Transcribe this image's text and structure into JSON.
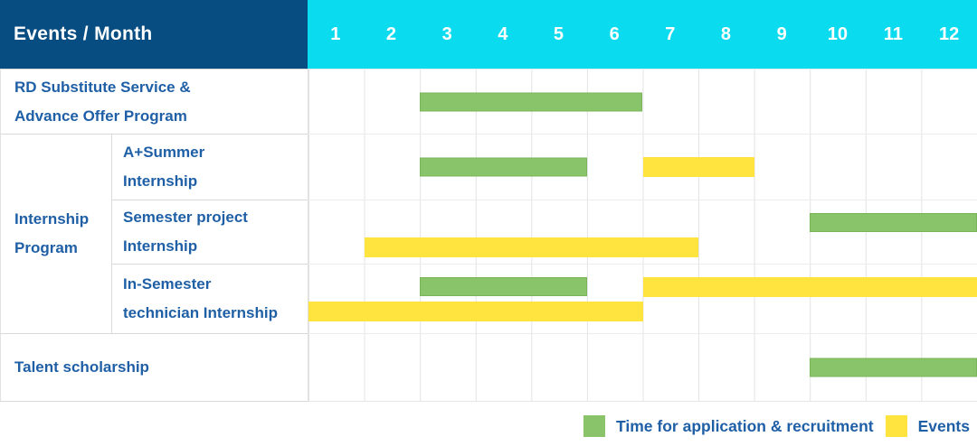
{
  "ui": {
    "header": {
      "title": "Events / Month",
      "months": [
        "1",
        "2",
        "3",
        "4",
        "5",
        "6",
        "7",
        "8",
        "9",
        "10",
        "11",
        "12"
      ]
    },
    "rows": [
      {
        "lines": [
          "RD Substitute Service &",
          "Advance Offer Program"
        ]
      },
      {
        "lines": [
          "A+Summer",
          "Internship"
        ]
      },
      {
        "lines": [
          "Semester project",
          "Internship"
        ]
      },
      {
        "lines": [
          "In-Semester",
          "technician Internship"
        ]
      },
      {
        "lines": [
          "Talent scholarship"
        ]
      }
    ],
    "group": {
      "lines": [
        "Internship",
        "Program"
      ]
    },
    "legend": {
      "recruitment_label": "Time for application & recruitment",
      "events_label": "Events"
    }
  },
  "colors": {
    "navy": "#074D81",
    "cyan": "#0BDBEF",
    "green": "#8AC46A",
    "yellow": "#FFE33F",
    "label_blue": "#1F5FA6"
  },
  "chart_data": {
    "type": "gantt",
    "title": "Events / Month",
    "x_axis": {
      "label": "Month",
      "ticks": [
        1,
        2,
        3,
        4,
        5,
        6,
        7,
        8,
        9,
        10,
        11,
        12
      ],
      "range": [
        1,
        12
      ]
    },
    "legend_position": "bottom-right",
    "grid": true,
    "series_colors": {
      "Time for application & recruitment": "#8AC46A",
      "Events": "#FFE33F"
    },
    "rows": [
      {
        "group": null,
        "label": "RD Substitute Service & Advance Offer Program",
        "bars": [
          {
            "series": "Time for application & recruitment",
            "start_month": 3,
            "end_month": 6,
            "lane": "single"
          }
        ]
      },
      {
        "group": "Internship Program",
        "label": "A+Summer Internship",
        "bars": [
          {
            "series": "Time for application & recruitment",
            "start_month": 3,
            "end_month": 5,
            "lane": "single"
          },
          {
            "series": "Events",
            "start_month": 7,
            "end_month": 8,
            "lane": "single"
          }
        ]
      },
      {
        "group": "Internship Program",
        "label": "Semester project Internship",
        "bars": [
          {
            "series": "Time for application & recruitment",
            "start_month": 10,
            "end_month": 12,
            "lane": "top"
          },
          {
            "series": "Events",
            "start_month": 2,
            "end_month": 7,
            "lane": "bottom"
          }
        ]
      },
      {
        "group": "Internship Program",
        "label": "In-Semester technician Internship",
        "bars": [
          {
            "series": "Time for application & recruitment",
            "start_month": 3,
            "end_month": 5,
            "lane": "top"
          },
          {
            "series": "Events",
            "start_month": 7,
            "end_month": 12,
            "lane": "top"
          },
          {
            "series": "Events",
            "start_month": 1,
            "end_month": 6,
            "lane": "bottom"
          }
        ]
      },
      {
        "group": null,
        "label": "Talent scholarship",
        "bars": [
          {
            "series": "Time for application & recruitment",
            "start_month": 10,
            "end_month": 12,
            "lane": "single"
          }
        ]
      }
    ],
    "legend": [
      {
        "label": "Time for application & recruitment",
        "color": "#8AC46A"
      },
      {
        "label": "Events",
        "color": "#FFE33F"
      }
    ]
  }
}
